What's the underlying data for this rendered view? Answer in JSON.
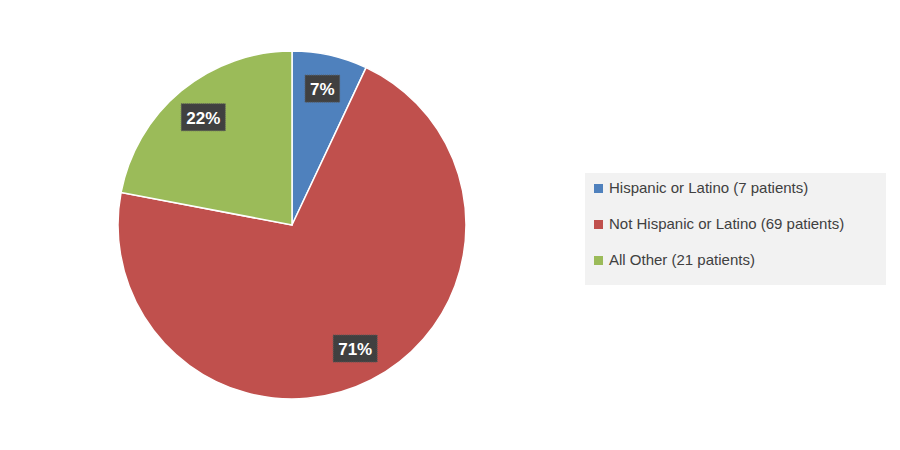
{
  "chart_data": {
    "type": "pie",
    "categories": [
      "Hispanic or Latino (7 patients)",
      "Not Hispanic or Latino (69 patients)",
      "All Other (21 patients)"
    ],
    "values": [
      7,
      71,
      22
    ],
    "value_labels": [
      "7%",
      "71%",
      "22%"
    ],
    "colors": [
      "#4f81bd",
      "#c0504d",
      "#9bbb59"
    ],
    "data_labels": true,
    "legend": "right"
  }
}
